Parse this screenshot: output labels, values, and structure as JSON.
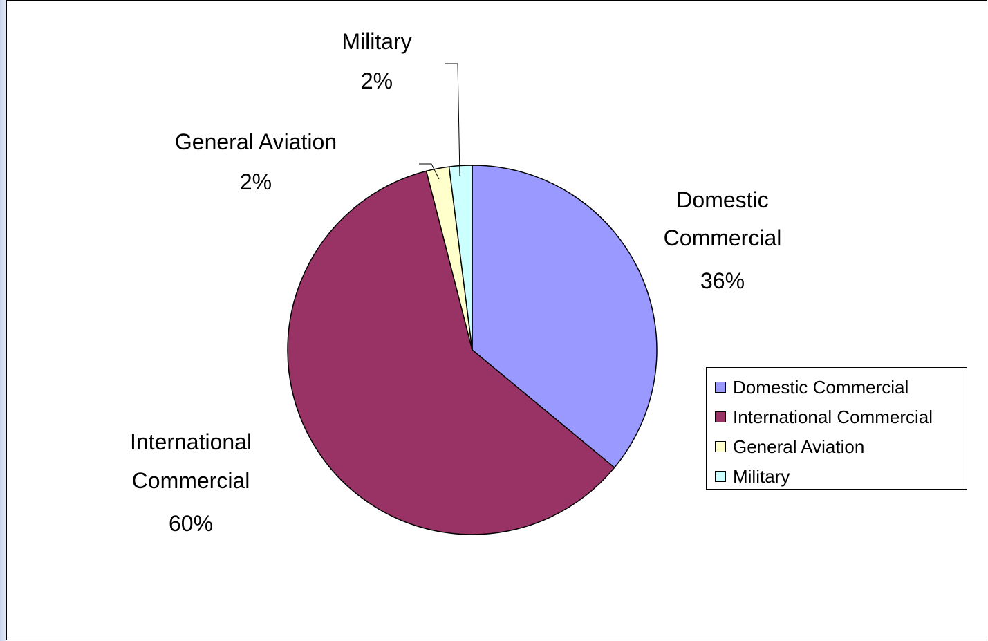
{
  "chart_data": {
    "type": "pie",
    "categories": [
      "Domestic Commercial",
      "International Commercial",
      "General Aviation",
      "Military"
    ],
    "values": [
      36,
      60,
      2,
      2
    ],
    "percent_labels": [
      "36%",
      "60%",
      "2%",
      "2%"
    ],
    "label_lines": [
      [
        "Domestic",
        "Commercial",
        "36%"
      ],
      [
        "International",
        "Commercial",
        "60%"
      ],
      [
        "General Aviation",
        "2%"
      ],
      [
        "Military",
        "2%"
      ]
    ],
    "colors": [
      "#9999ff",
      "#993366",
      "#ffffcc",
      "#ccffff"
    ],
    "legend": {
      "placement": "right",
      "items": [
        "Domestic Commercial",
        "International Commercial",
        "General Aviation",
        "Military"
      ]
    }
  }
}
